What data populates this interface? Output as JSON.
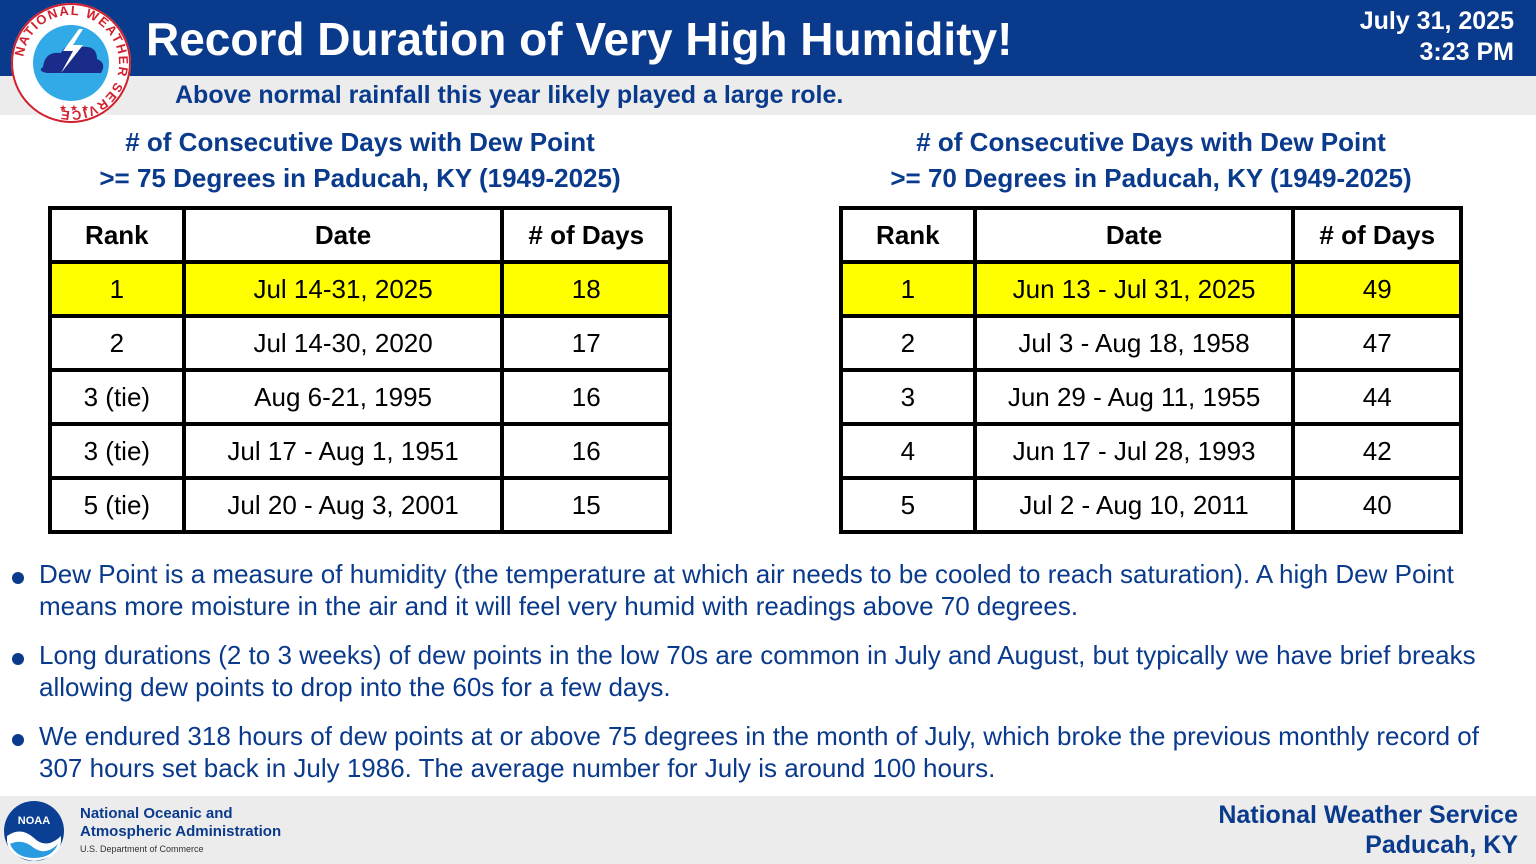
{
  "header": {
    "title": "Record Duration of Very High Humidity!",
    "date": "July 31, 2025",
    "time": "3:23 PM",
    "subtitle": "Above normal rainfall this year likely played a large role.",
    "logo_text": "NATIONAL WEATHER SERVICE"
  },
  "table_75": {
    "title_line1": "# of Consecutive Days with Dew Point",
    "title_line2": ">= 75 Degrees in Paducah, KY (1949-2025)",
    "headers": [
      "Rank",
      "Date",
      "# of Days"
    ],
    "rows": [
      {
        "rank": "1",
        "date": "Jul 14-31, 2025",
        "days": "18"
      },
      {
        "rank": "2",
        "date": "Jul 14-30, 2020",
        "days": "17"
      },
      {
        "rank": "3 (tie)",
        "date": "Aug 6-21, 1995",
        "days": "16"
      },
      {
        "rank": "3 (tie)",
        "date": "Jul 17 - Aug 1, 1951",
        "days": "16"
      },
      {
        "rank": "5 (tie)",
        "date": "Jul 20 - Aug 3, 2001",
        "days": "15"
      }
    ]
  },
  "table_70": {
    "title_line1": "# of Consecutive Days with Dew Point",
    "title_line2": ">= 70 Degrees in Paducah, KY (1949-2025)",
    "headers": [
      "Rank",
      "Date",
      "# of Days"
    ],
    "rows": [
      {
        "rank": "1",
        "date": "Jun 13 - Jul 31, 2025",
        "days": "49"
      },
      {
        "rank": "2",
        "date": "Jul 3 - Aug 18, 1958",
        "days": "47"
      },
      {
        "rank": "3",
        "date": "Jun 29 - Aug 11, 1955",
        "days": "44"
      },
      {
        "rank": "4",
        "date": "Jun 17 - Jul 28, 1993",
        "days": "42"
      },
      {
        "rank": "5",
        "date": "Jul 2 - Aug 10, 2011",
        "days": "40"
      }
    ]
  },
  "bullets": [
    "Dew Point is a measure of humidity (the temperature at which air needs to be cooled to reach saturation). A high Dew Point means more moisture in the air and it will feel very humid with readings above 70 degrees.",
    "Long durations (2 to 3 weeks) of dew points in the low 70s are common in July and August, but typically we have brief breaks allowing dew points to drop into the 60s for a few days.",
    "We endured 318 hours of dew points at or above 75 degrees in the month of July, which broke the previous monthly record of 307 hours set back in July 1986. The average number for July is around 100 hours."
  ],
  "footer": {
    "noaa_line1": "National Oceanic and",
    "noaa_line2": "Atmospheric Administration",
    "noaa_dept": "U.S. Department of Commerce",
    "noaa_logo_text": "NOAA",
    "nws_line1": "National Weather Service",
    "nws_line2": "Paducah, KY"
  },
  "colors": {
    "header_blue": "#0a3a8c",
    "highlight_yellow": "#ffff00",
    "band_gray": "#ececec"
  },
  "icons": {
    "nws": "nws-logo-icon",
    "noaa": "noaa-logo-icon"
  }
}
